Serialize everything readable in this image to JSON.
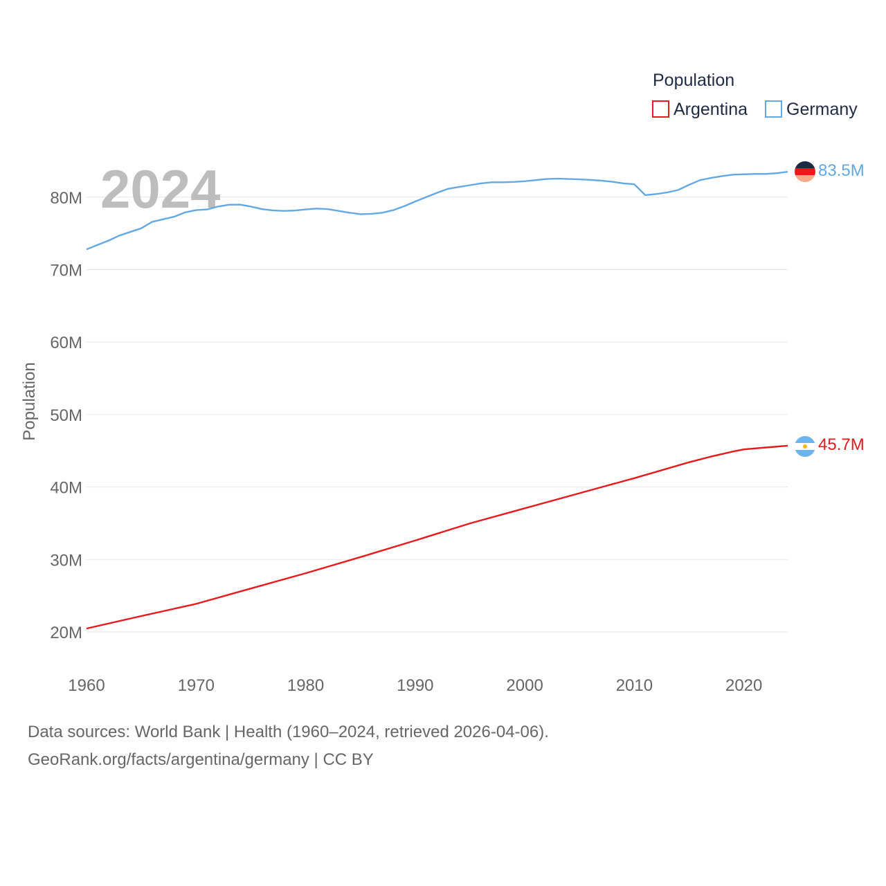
{
  "chart_data": {
    "type": "line",
    "title": "",
    "year_label": "2024",
    "ylabel": "Population",
    "xlabel": "",
    "xlim": [
      1960,
      2024
    ],
    "ylim": [
      15000000,
      88000000
    ],
    "x_ticks": [
      1960,
      1970,
      1980,
      1990,
      2000,
      2010,
      2020
    ],
    "y_ticks": [
      {
        "value": 20000000,
        "label": "20M"
      },
      {
        "value": 30000000,
        "label": "30M"
      },
      {
        "value": 40000000,
        "label": "40M"
      },
      {
        "value": 50000000,
        "label": "50M"
      },
      {
        "value": 60000000,
        "label": "60M"
      },
      {
        "value": 70000000,
        "label": "70M"
      },
      {
        "value": 80000000,
        "label": "80M"
      }
    ],
    "legend": {
      "title": "Population",
      "position": "top-right"
    },
    "series": [
      {
        "name": "Argentina",
        "color": "#e8191b",
        "end_label": "45.7M",
        "points": [
          [
            1960,
            20480000
          ],
          [
            1965,
            22200000
          ],
          [
            1970,
            23880000
          ],
          [
            1975,
            26000000
          ],
          [
            1980,
            28110000
          ],
          [
            1985,
            30330000
          ],
          [
            1990,
            32620000
          ],
          [
            1995,
            34990000
          ],
          [
            2000,
            37070000
          ],
          [
            2005,
            39150000
          ],
          [
            2010,
            41220000
          ],
          [
            2015,
            43420000
          ],
          [
            2017,
            44200000
          ],
          [
            2019,
            44900000
          ],
          [
            2020,
            45200000
          ],
          [
            2022,
            45450000
          ],
          [
            2024,
            45700000
          ]
        ]
      },
      {
        "name": "Germany",
        "color": "#62a8e5",
        "end_label": "83.5M",
        "points": [
          [
            1960,
            72800000
          ],
          [
            1961,
            73400000
          ],
          [
            1962,
            74000000
          ],
          [
            1963,
            74700000
          ],
          [
            1965,
            75700000
          ],
          [
            1966,
            76600000
          ],
          [
            1968,
            77300000
          ],
          [
            1969,
            77900000
          ],
          [
            1970,
            78200000
          ],
          [
            1971,
            78300000
          ],
          [
            1972,
            78700000
          ],
          [
            1973,
            78950000
          ],
          [
            1974,
            78970000
          ],
          [
            1975,
            78700000
          ],
          [
            1976,
            78350000
          ],
          [
            1977,
            78180000
          ],
          [
            1978,
            78100000
          ],
          [
            1979,
            78150000
          ],
          [
            1980,
            78300000
          ],
          [
            1981,
            78420000
          ],
          [
            1982,
            78350000
          ],
          [
            1983,
            78100000
          ],
          [
            1984,
            77850000
          ],
          [
            1985,
            77650000
          ],
          [
            1986,
            77700000
          ],
          [
            1987,
            77850000
          ],
          [
            1988,
            78200000
          ],
          [
            1989,
            78750000
          ],
          [
            1990,
            79400000
          ],
          [
            1991,
            80000000
          ],
          [
            1992,
            80600000
          ],
          [
            1993,
            81150000
          ],
          [
            1994,
            81400000
          ],
          [
            1995,
            81650000
          ],
          [
            1996,
            81900000
          ],
          [
            1997,
            82050000
          ],
          [
            1998,
            82050000
          ],
          [
            1999,
            82100000
          ],
          [
            2000,
            82200000
          ],
          [
            2001,
            82350000
          ],
          [
            2002,
            82500000
          ],
          [
            2003,
            82550000
          ],
          [
            2004,
            82500000
          ],
          [
            2005,
            82450000
          ],
          [
            2006,
            82380000
          ],
          [
            2007,
            82270000
          ],
          [
            2008,
            82120000
          ],
          [
            2009,
            81900000
          ],
          [
            2010,
            81780000
          ],
          [
            2011,
            80280000
          ],
          [
            2012,
            80430000
          ],
          [
            2013,
            80650000
          ],
          [
            2014,
            80980000
          ],
          [
            2015,
            81700000
          ],
          [
            2016,
            82350000
          ],
          [
            2017,
            82650000
          ],
          [
            2018,
            82900000
          ],
          [
            2019,
            83100000
          ],
          [
            2020,
            83150000
          ],
          [
            2021,
            83200000
          ],
          [
            2022,
            83200000
          ],
          [
            2023,
            83300000
          ],
          [
            2024,
            83500000
          ]
        ]
      }
    ]
  },
  "footer": {
    "line1": "Data sources: World Bank | Health (1960–2024, retrieved 2026-04-06).",
    "line2": "GeoRank.org/facts/argentina/germany | CC BY"
  }
}
